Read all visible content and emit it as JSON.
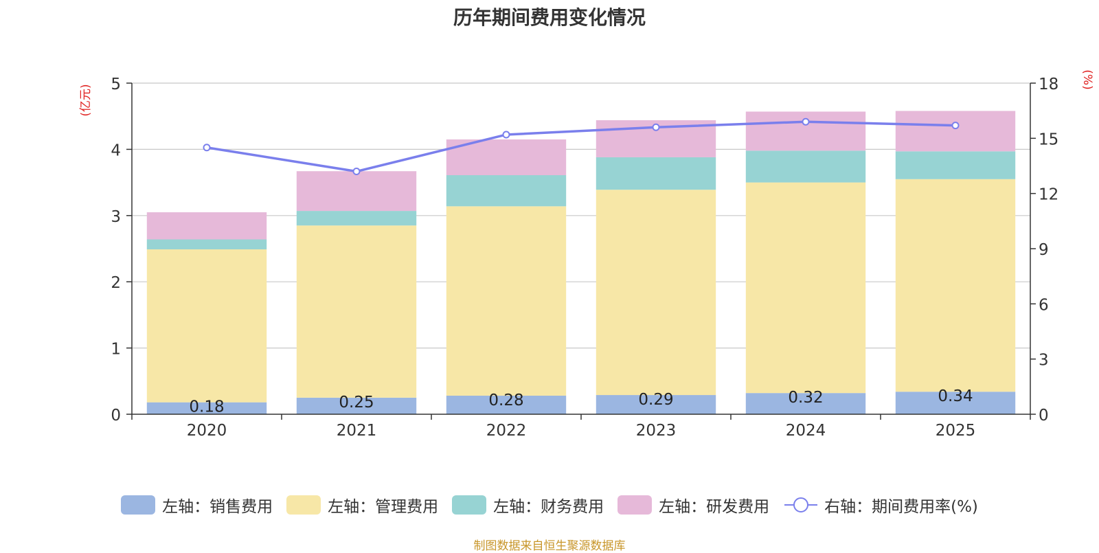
{
  "chart_data": {
    "type": "bar",
    "title": "历年期间费用变化情况",
    "source": "制图数据来自恒生聚源数据库",
    "categories": [
      "2020",
      "2021",
      "2022",
      "2023",
      "2024",
      "2025"
    ],
    "left_axis": {
      "label": "(亿元)",
      "min": 0,
      "max": 5,
      "ticks": [
        0,
        1,
        2,
        3,
        4,
        5
      ]
    },
    "right_axis": {
      "label": "(%)",
      "min": 0,
      "max": 18,
      "ticks": [
        0,
        3,
        6,
        9,
        12,
        15,
        18
      ]
    },
    "series": [
      {
        "name": "左轴：销售费用",
        "type": "bar",
        "axis": "left",
        "color": "#9bb6e1",
        "values": [
          0.18,
          0.25,
          0.28,
          0.29,
          0.32,
          0.34
        ],
        "show_labels": true
      },
      {
        "name": "左轴：管理费用",
        "type": "bar",
        "axis": "left",
        "color": "#f7e7a7",
        "values": [
          2.31,
          2.6,
          2.86,
          3.1,
          3.18,
          3.21
        ]
      },
      {
        "name": "左轴：财务费用",
        "type": "bar",
        "axis": "left",
        "color": "#97d3d3",
        "values": [
          0.15,
          0.22,
          0.47,
          0.49,
          0.48,
          0.42
        ]
      },
      {
        "name": "左轴：研发费用",
        "type": "bar",
        "axis": "left",
        "color": "#e6b9d9",
        "values": [
          0.41,
          0.6,
          0.54,
          0.56,
          0.59,
          0.61
        ]
      },
      {
        "name": "右轴：期间费用率(%)",
        "type": "line",
        "axis": "right",
        "color": "#7a7fec",
        "values": [
          14.5,
          13.2,
          15.2,
          15.6,
          15.9,
          15.7
        ]
      }
    ]
  }
}
